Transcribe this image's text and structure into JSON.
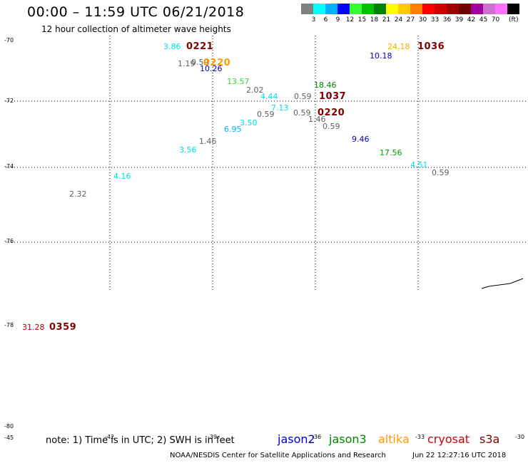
{
  "title": "00:00 – 11:59 UTC 06/21/2018",
  "subtitle": "12 hour collection of altimeter wave heights",
  "legend": {
    "unit": "(ft)",
    "colors": [
      "#808080",
      "#00ffff",
      "#00b0ff",
      "#0000ff",
      "#33ff33",
      "#00c000",
      "#008000",
      "#ffff00",
      "#ffcc00",
      "#ff8000",
      "#ff0000",
      "#d00000",
      "#a00000",
      "#700000",
      "#a000a0",
      "#d070d0",
      "#ff70ff",
      "#000000"
    ],
    "labels": [
      "3",
      "6",
      "9",
      "12",
      "15",
      "18",
      "21",
      "24",
      "27",
      "30",
      "33",
      "36",
      "39",
      "42",
      "45",
      "70"
    ]
  },
  "lat_labels": [
    "-70",
    "-72",
    "-74",
    "-76",
    "-78",
    "-80"
  ],
  "lon_labels": [
    "-45",
    "-42",
    "-39",
    "-36",
    "-33",
    "-30"
  ],
  "observations": [
    {
      "text": "3.86",
      "color": "#00e0e0"
    },
    {
      "text": "1.19",
      "color": "#606060"
    },
    {
      "text": "0.59",
      "color": "#606060"
    },
    {
      "text": "10.26",
      "color": "#0000c0"
    },
    {
      "text": "13.57",
      "color": "#33dd33"
    },
    {
      "text": "2.02",
      "color": "#606060"
    },
    {
      "text": "4.44",
      "color": "#00e0e0"
    },
    {
      "text": "0.59",
      "color": "#606060"
    },
    {
      "text": "18.46",
      "color": "#008000"
    },
    {
      "text": "7.13",
      "color": "#00e0e0"
    },
    {
      "text": "0.59",
      "color": "#606060"
    },
    {
      "text": "0.59",
      "color": "#606060"
    },
    {
      "text": "1.46",
      "color": "#606060"
    },
    {
      "text": "0.59",
      "color": "#606060"
    },
    {
      "text": "3.50",
      "color": "#00e0e0"
    },
    {
      "text": "6.95",
      "color": "#00b0ff"
    },
    {
      "text": "1.46",
      "color": "#606060"
    },
    {
      "text": "3.56",
      "color": "#00e0e0"
    },
    {
      "text": "9.46",
      "color": "#0000c0"
    },
    {
      "text": "17.56",
      "color": "#00a000"
    },
    {
      "text": "4.51",
      "color": "#00e0e0"
    },
    {
      "text": "0.59",
      "color": "#606060"
    },
    {
      "text": "4.16",
      "color": "#00e0e0"
    },
    {
      "text": "2.32",
      "color": "#606060"
    },
    {
      "text": "24.18",
      "color": "#ffaa00"
    },
    {
      "text": "10.18",
      "color": "#0000c0"
    },
    {
      "text": "31.28",
      "color": "#c00000"
    }
  ],
  "passes": [
    {
      "text": "0221",
      "color": "#800000"
    },
    {
      "text": "0220",
      "color": "#ff9900"
    },
    {
      "text": "1037",
      "color": "#800000"
    },
    {
      "text": "0220",
      "color": "#800000"
    },
    {
      "text": "1036",
      "color": "#800000"
    },
    {
      "text": "0359",
      "color": "#800000"
    }
  ],
  "note": "note:  1) Time is in UTC;  2) SWH is in feet",
  "satellites": [
    {
      "text": "jason2",
      "color": "#0000cc"
    },
    {
      "text": "jason3",
      "color": "#008800"
    },
    {
      "text": "altika",
      "color": "#ff9900"
    },
    {
      "text": "cryosat",
      "color": "#cc0000"
    },
    {
      "text": "s3a",
      "color": "#800000"
    }
  ],
  "credit": "NOAA/NESDIS Center for Satellite Applications and Research",
  "timestamp": "Jun 22 12:27:16 UTC 2018"
}
